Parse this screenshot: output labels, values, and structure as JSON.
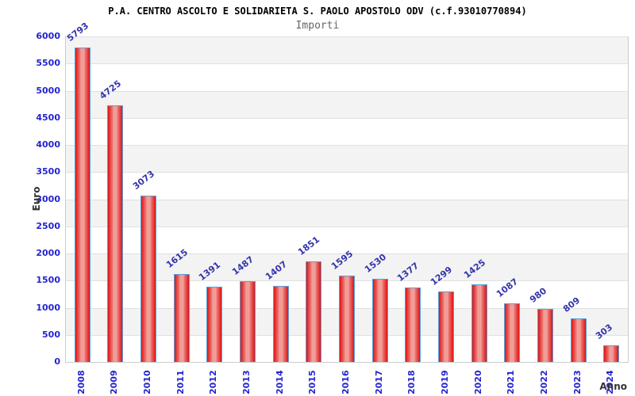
{
  "chart_data": {
    "type": "bar",
    "title": "P.A. CENTRO ASCOLTO E SOLIDARIETA S. PAOLO APOSTOLO ODV (c.f.93010770894)",
    "subtitle": "Importi",
    "xlabel": "Anno",
    "ylabel": "Euro",
    "categories": [
      "2008",
      "2009",
      "2010",
      "2011",
      "2012",
      "2013",
      "2014",
      "2015",
      "2016",
      "2017",
      "2018",
      "2019",
      "2020",
      "2021",
      "2022",
      "2023",
      "2024"
    ],
    "values": [
      5793,
      4725,
      3073,
      1615,
      1391,
      1487,
      1407,
      1851,
      1595,
      1530,
      1377,
      1299,
      1425,
      1087,
      980,
      809,
      303
    ],
    "ylim": [
      0,
      6000
    ],
    "ytick_step": 500,
    "yticks": [
      0,
      500,
      1000,
      1500,
      2000,
      2500,
      3000,
      3500,
      4000,
      4500,
      5000,
      5500,
      6000
    ],
    "grid": "horizontal gridlines every 500 with alternating shaded bands",
    "legend": "none",
    "value_labels": "above each bar, rotated",
    "colors": {
      "bar_fill_edge": "#df1414",
      "bar_fill_center": "#f3aba5",
      "bar_border": "#57a0dc",
      "tick_label": "#2424cf",
      "value_label": "#3434ad",
      "axis_title": "#333333",
      "title": "#000000",
      "subtitle": "#666666",
      "band_shaded": "#f3f3f3",
      "band_plain": "#ffffff",
      "gridline": "#e0e0e0",
      "plot_border": "#cccccc",
      "background": "#ffffff"
    }
  }
}
